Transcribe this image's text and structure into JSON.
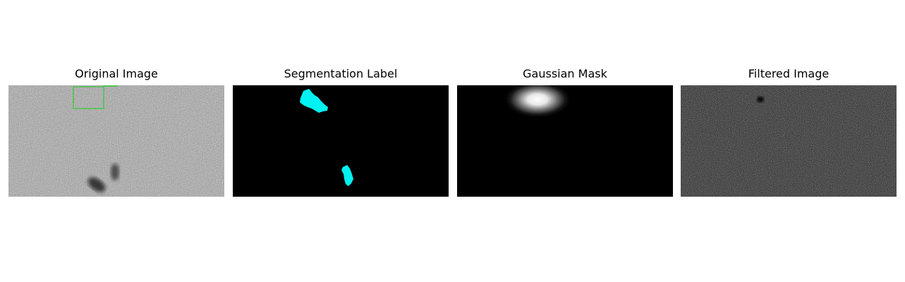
{
  "figure": {
    "panels": [
      {
        "title": "Original Image"
      },
      {
        "title": "Segmentation Label"
      },
      {
        "title": "Gaussian Mask"
      },
      {
        "title": "Filtered Image"
      }
    ],
    "colors": {
      "background": "#ffffff",
      "segmentation_blob": "#00f2f2",
      "bounding_box": "#33cc33",
      "mask_black": "#000000",
      "mask_white": "#ffffff"
    }
  }
}
